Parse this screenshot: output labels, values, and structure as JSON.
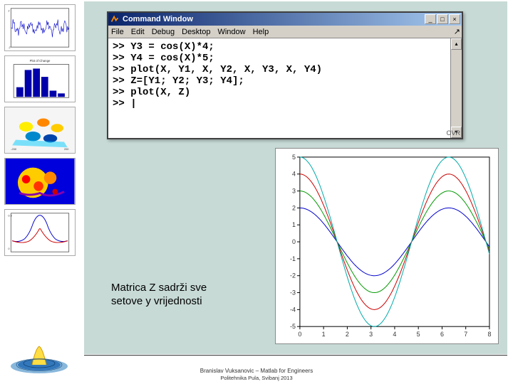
{
  "window": {
    "title": "Command Window",
    "menus": [
      "File",
      "Edit",
      "Debug",
      "Desktop",
      "Window",
      "Help"
    ],
    "min_label": "_",
    "max_label": "□",
    "close_label": "×",
    "status_ovr": "OVR"
  },
  "code_lines": [
    ">> Y3 = cos(X)*4;",
    ">> Y4 = cos(X)*5;",
    ">> plot(X, Y1, X, Y2, X, Y3, X, Y4)",
    ">> Z=[Y1; Y2; Y3; Y4];",
    ">> plot(X, Z)",
    ">> |"
  ],
  "caption": "Matrica Z sadrži sve setove y vrijednosti",
  "footer": {
    "line1": "Branislav Vuksanovic – Matlab for Engineers",
    "line2": "Politehnika Pula, Svibanj 2013"
  },
  "plot": {
    "type": "line",
    "xlim": [
      0,
      8
    ],
    "ylim": [
      -5,
      5
    ],
    "xtick_step": 1,
    "ytick_step": 1,
    "background_color": "#ffffff",
    "axes_color": "#000000",
    "grid_color": "#cccccc",
    "tick_fontsize": 9,
    "tick_color": "#333333",
    "series": [
      {
        "amplitude": 2,
        "color": "#0000cc",
        "linewidth": 1
      },
      {
        "amplitude": 3,
        "color": "#009900",
        "linewidth": 1
      },
      {
        "amplitude": 4,
        "color": "#cc0000",
        "linewidth": 1
      },
      {
        "amplitude": 5,
        "color": "#00aaaa",
        "linewidth": 1
      }
    ],
    "x_period": 6.2832
  },
  "thumbs": {
    "signal": {
      "color": "#0000cc",
      "bg": "#ffffff"
    },
    "bar": {
      "color": "#0000aa",
      "bg": "#ffffff",
      "title": "Plot of Change"
    },
    "surface": {
      "colors": [
        "#ffee00",
        "#ff8800",
        "#0044aa",
        "#00ccff"
      ]
    },
    "fractal": {
      "colors": [
        "#ff0000",
        "#ffcc00",
        "#0000ff",
        "#8800aa"
      ]
    },
    "sinc2d": {
      "color1": "#0000cc",
      "color2": "#cc0000",
      "bg": "#ffffff"
    }
  },
  "colors": {
    "main_bg": "#c7dad6",
    "titlebar_start": "#0a246a",
    "titlebar_end": "#a6caf0",
    "win_chrome": "#d4d0c8"
  }
}
